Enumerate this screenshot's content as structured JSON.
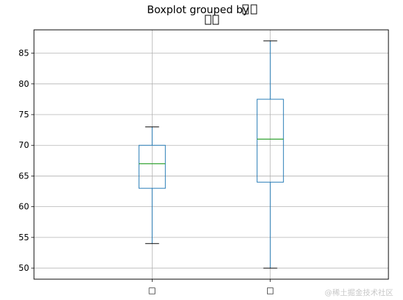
{
  "chart_data": {
    "type": "box",
    "title": "Boxplot grouped by □□",
    "subtitle": "□□",
    "categories": [
      "□",
      "□"
    ],
    "boxes": [
      {
        "whisker_low": 54,
        "q1": 63,
        "median": 67,
        "q3": 70,
        "whisker_high": 73
      },
      {
        "whisker_low": 50,
        "q1": 64,
        "median": 71,
        "q3": 77.5,
        "whisker_high": 87
      }
    ],
    "ylim": [
      48.2,
      88.8
    ],
    "yticks": [
      50,
      55,
      60,
      65,
      70,
      75,
      80,
      85
    ],
    "grid": true,
    "colors": {
      "box": "#1f77b4",
      "median": "#2ca02c",
      "whisker_cap": "#000000",
      "grid": "#b0b0b0"
    }
  },
  "watermark": "@稀土掘金技术社区"
}
